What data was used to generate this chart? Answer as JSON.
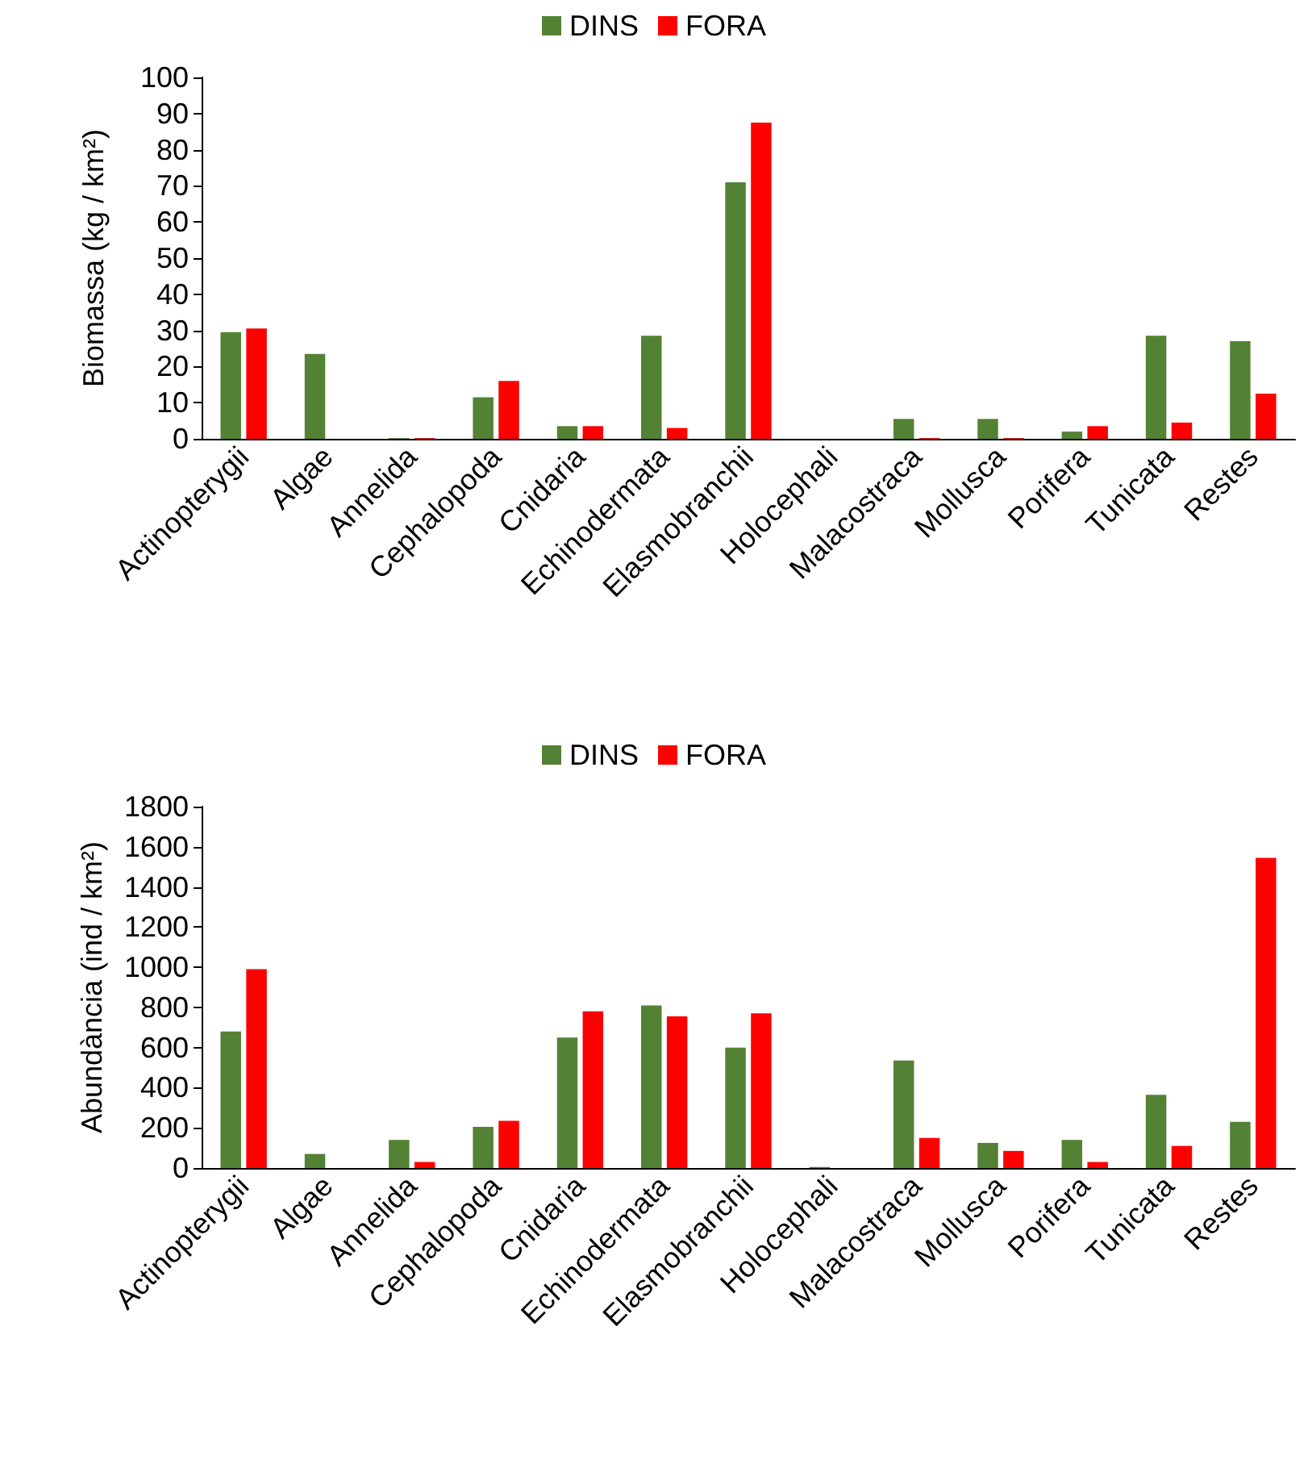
{
  "chart_data": [
    {
      "type": "bar",
      "ylabel": "Biomassa (kg / km²)",
      "categories": [
        "Actinopterygii",
        "Algae",
        "Annelida",
        "Cephalopoda",
        "Cnidaria",
        "Echinodermata",
        "Elasmobranchii",
        "Holocephali",
        "Malacostraca",
        "Mollusca",
        "Porifera",
        "Tunicata",
        "Restes"
      ],
      "series": [
        {
          "name": "DINS",
          "color": "#548235",
          "values": [
            29.5,
            23.5,
            0.2,
            11.5,
            3.5,
            28.5,
            71,
            0,
            5.5,
            5.5,
            2,
            28.5,
            27
          ]
        },
        {
          "name": "FORA",
          "color": "#ff0000",
          "values": [
            30.5,
            0,
            0.2,
            16,
            3.5,
            3,
            87.5,
            0,
            0.2,
            0.2,
            3.5,
            4.5,
            12.5
          ]
        }
      ],
      "ylim": [
        0,
        100
      ],
      "yticks": [
        0,
        10,
        20,
        30,
        40,
        50,
        60,
        70,
        80,
        90,
        100
      ],
      "grid": false,
      "legend": "top"
    },
    {
      "type": "bar",
      "ylabel": "Abundància (ind / km²)",
      "categories": [
        "Actinopterygii",
        "Algae",
        "Annelida",
        "Cephalopoda",
        "Cnidaria",
        "Echinodermata",
        "Elasmobranchii",
        "Holocephali",
        "Malacostraca",
        "Mollusca",
        "Porifera",
        "Tunicata",
        "Restes"
      ],
      "series": [
        {
          "name": "DINS",
          "color": "#548235",
          "values": [
            680,
            70,
            140,
            205,
            650,
            810,
            600,
            5,
            535,
            125,
            140,
            365,
            230
          ]
        },
        {
          "name": "FORA",
          "color": "#ff0000",
          "values": [
            990,
            0,
            30,
            235,
            780,
            755,
            770,
            0,
            150,
            85,
            30,
            110,
            1545
          ]
        }
      ],
      "ylim": [
        0,
        1800
      ],
      "yticks": [
        0,
        200,
        400,
        600,
        800,
        1000,
        1200,
        1400,
        1600,
        1800
      ],
      "grid": false,
      "legend": "top"
    }
  ]
}
